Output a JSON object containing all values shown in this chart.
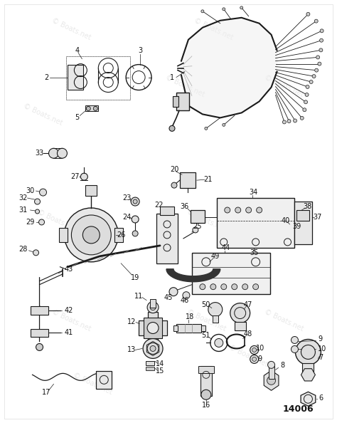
{
  "bg_color": "#ffffff",
  "watermark": "© Boats.net",
  "part_number": "14006",
  "fig_width": 4.74,
  "fig_height": 5.94,
  "dpi": 100,
  "lc": "#1a1a1a",
  "tc": "#111111",
  "gray1": "#cccccc",
  "gray2": "#888888",
  "gray3": "#555555",
  "gray4": "#333333",
  "wm_color": "#999999",
  "wm_alpha": 0.22
}
